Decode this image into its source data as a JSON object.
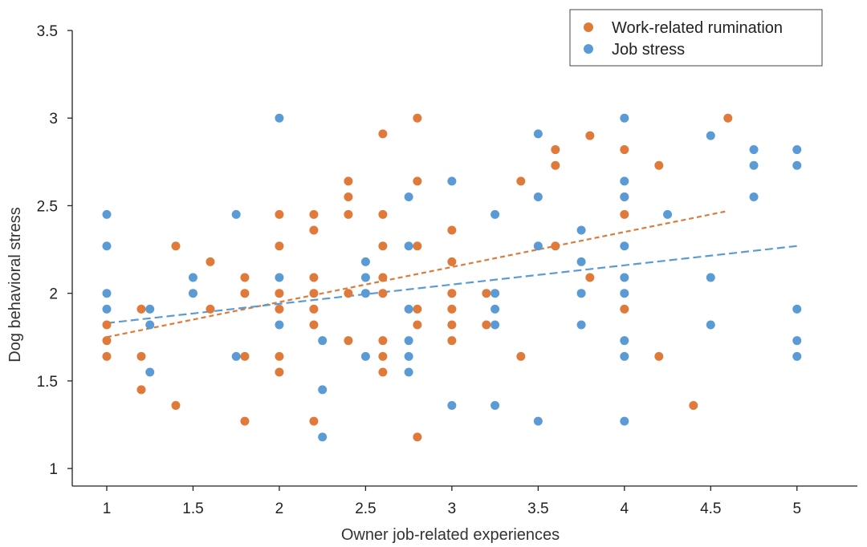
{
  "chart_data": {
    "type": "scatter",
    "xlabel": "Owner job-related experiences",
    "ylabel": "Dog behavioral stress",
    "xlim": [
      0.8,
      5.35
    ],
    "ylim": [
      0.9,
      3.5
    ],
    "x_ticks": [
      "1",
      "1.5",
      "2",
      "2.5",
      "3",
      "3.5",
      "4",
      "4.5",
      "5"
    ],
    "y_ticks": [
      "1",
      "1.5",
      "2",
      "2.5",
      "3",
      "3.5"
    ],
    "grid": false,
    "legend_position": "top-right",
    "series": [
      {
        "name": "Work-related rumination",
        "color": "#e07a3a",
        "trendline": {
          "x": [
            1.0,
            4.6
          ],
          "y": [
            1.75,
            2.47
          ],
          "style": "dashed"
        },
        "points": [
          [
            1.0,
            1.82
          ],
          [
            1.0,
            1.73
          ],
          [
            1.0,
            1.64
          ],
          [
            1.2,
            1.91
          ],
          [
            1.2,
            1.64
          ],
          [
            1.2,
            1.45
          ],
          [
            1.4,
            2.27
          ],
          [
            1.4,
            1.36
          ],
          [
            1.6,
            2.18
          ],
          [
            1.6,
            1.91
          ],
          [
            1.8,
            2.09
          ],
          [
            1.8,
            2.0
          ],
          [
            1.8,
            1.64
          ],
          [
            1.8,
            1.27
          ],
          [
            2.0,
            2.45
          ],
          [
            2.0,
            2.27
          ],
          [
            2.0,
            2.0
          ],
          [
            2.0,
            1.91
          ],
          [
            2.0,
            1.64
          ],
          [
            2.0,
            1.55
          ],
          [
            2.2,
            2.45
          ],
          [
            2.2,
            2.36
          ],
          [
            2.2,
            2.09
          ],
          [
            2.2,
            2.0
          ],
          [
            2.2,
            1.91
          ],
          [
            2.2,
            1.82
          ],
          [
            2.2,
            1.27
          ],
          [
            2.4,
            2.64
          ],
          [
            2.4,
            2.55
          ],
          [
            2.4,
            2.45
          ],
          [
            2.4,
            2.0
          ],
          [
            2.4,
            1.73
          ],
          [
            2.6,
            2.91
          ],
          [
            2.6,
            2.45
          ],
          [
            2.6,
            2.27
          ],
          [
            2.6,
            2.09
          ],
          [
            2.6,
            2.0
          ],
          [
            2.6,
            1.73
          ],
          [
            2.6,
            1.64
          ],
          [
            2.6,
            1.55
          ],
          [
            2.8,
            3.0
          ],
          [
            2.8,
            2.64
          ],
          [
            2.8,
            2.27
          ],
          [
            2.8,
            1.91
          ],
          [
            2.8,
            1.82
          ],
          [
            2.8,
            1.18
          ],
          [
            3.0,
            2.36
          ],
          [
            3.0,
            2.18
          ],
          [
            3.0,
            2.0
          ],
          [
            3.0,
            1.91
          ],
          [
            3.0,
            1.82
          ],
          [
            3.0,
            1.73
          ],
          [
            3.2,
            2.0
          ],
          [
            3.2,
            1.82
          ],
          [
            3.4,
            2.64
          ],
          [
            3.4,
            1.64
          ],
          [
            3.6,
            2.82
          ],
          [
            3.6,
            2.73
          ],
          [
            3.6,
            2.27
          ],
          [
            3.8,
            2.9
          ],
          [
            3.8,
            2.09
          ],
          [
            4.0,
            2.82
          ],
          [
            4.0,
            2.55
          ],
          [
            4.0,
            2.45
          ],
          [
            4.0,
            1.91
          ],
          [
            4.2,
            2.73
          ],
          [
            4.2,
            1.64
          ],
          [
            4.4,
            1.36
          ],
          [
            4.6,
            3.0
          ]
        ]
      },
      {
        "name": "Job stress",
        "color": "#5b9bd5",
        "trendline": {
          "x": [
            1.0,
            5.0
          ],
          "y": [
            1.83,
            2.27
          ],
          "style": "dashed"
        },
        "points": [
          [
            1.0,
            2.45
          ],
          [
            1.0,
            2.27
          ],
          [
            1.0,
            2.0
          ],
          [
            1.0,
            1.91
          ],
          [
            1.25,
            1.91
          ],
          [
            1.25,
            1.82
          ],
          [
            1.25,
            1.55
          ],
          [
            1.5,
            2.09
          ],
          [
            1.5,
            2.0
          ],
          [
            1.75,
            2.45
          ],
          [
            1.75,
            1.64
          ],
          [
            2.0,
            3.0
          ],
          [
            2.0,
            2.09
          ],
          [
            2.0,
            1.82
          ],
          [
            2.25,
            1.73
          ],
          [
            2.25,
            1.45
          ],
          [
            2.25,
            1.18
          ],
          [
            2.5,
            2.18
          ],
          [
            2.5,
            2.09
          ],
          [
            2.5,
            2.0
          ],
          [
            2.5,
            1.64
          ],
          [
            2.75,
            2.55
          ],
          [
            2.75,
            2.27
          ],
          [
            2.75,
            1.91
          ],
          [
            2.75,
            1.73
          ],
          [
            2.75,
            1.64
          ],
          [
            2.75,
            1.55
          ],
          [
            3.0,
            2.64
          ],
          [
            3.0,
            1.36
          ],
          [
            3.25,
            2.45
          ],
          [
            3.25,
            2.0
          ],
          [
            3.25,
            1.91
          ],
          [
            3.25,
            1.82
          ],
          [
            3.25,
            1.36
          ],
          [
            3.5,
            2.91
          ],
          [
            3.5,
            2.55
          ],
          [
            3.5,
            2.27
          ],
          [
            3.5,
            1.27
          ],
          [
            3.75,
            2.36
          ],
          [
            3.75,
            2.18
          ],
          [
            3.75,
            2.0
          ],
          [
            3.75,
            1.82
          ],
          [
            4.0,
            3.0
          ],
          [
            4.0,
            2.64
          ],
          [
            4.0,
            2.55
          ],
          [
            4.0,
            2.27
          ],
          [
            4.0,
            2.09
          ],
          [
            4.0,
            2.0
          ],
          [
            4.0,
            1.73
          ],
          [
            4.0,
            1.64
          ],
          [
            4.0,
            1.27
          ],
          [
            4.25,
            2.45
          ],
          [
            4.5,
            2.9
          ],
          [
            4.5,
            2.09
          ],
          [
            4.5,
            1.82
          ],
          [
            4.75,
            2.82
          ],
          [
            4.75,
            2.73
          ],
          [
            4.75,
            2.55
          ],
          [
            5.0,
            2.82
          ],
          [
            5.0,
            2.73
          ],
          [
            5.0,
            1.91
          ],
          [
            5.0,
            1.73
          ],
          [
            5.0,
            1.64
          ]
        ]
      }
    ]
  }
}
